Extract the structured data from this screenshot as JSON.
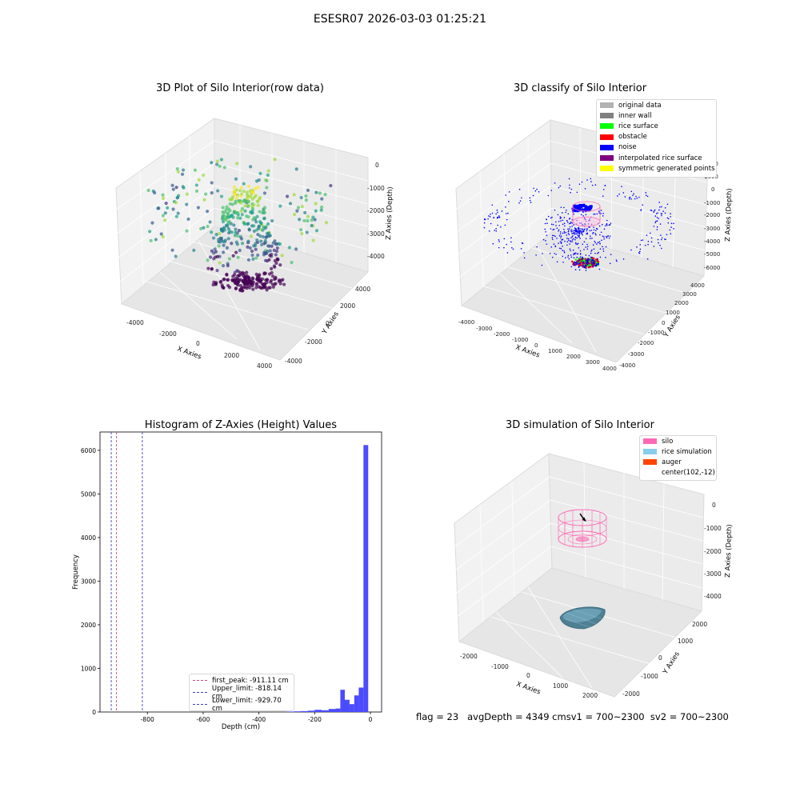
{
  "figure": {
    "suptitle": "ESESR07 2026-03-03 01:25:21",
    "footer": "flag = 23   avgDepth = 4349 cmsv1 = 700~2300  sv2 = 700~2300"
  },
  "chart_data": [
    {
      "type": "scatter",
      "title": "3D Plot of Silo Interior(row data)",
      "xlabel": "X Axies",
      "ylabel": "Y Axies",
      "zlabel": "Z Axies (Depth)",
      "x_ticks": [
        "-4000",
        "-2000",
        "0",
        "2000",
        "4000"
      ],
      "y_ticks": [
        "-4000",
        "-2000",
        "0",
        "2000",
        "4000"
      ],
      "z_ticks": [
        "0",
        "-1000",
        "-2000",
        "-3000",
        "-4000"
      ],
      "xlim": [
        -4500,
        4500
      ],
      "ylim": [
        -4500,
        4500
      ],
      "zlim": [
        -4800,
        200
      ],
      "colormap": "viridis"
    },
    {
      "type": "scatter",
      "title": "3D classify of Silo Interior",
      "xlabel": "X Axies",
      "ylabel": "Y Axies",
      "zlabel": "Z Axies (Depth)",
      "x_ticks": [
        "-4000",
        "-3000",
        "-2000",
        "-1000",
        "0",
        "1000",
        "2000",
        "3000",
        "4000"
      ],
      "y_ticks": [
        "-4000",
        "-3000",
        "-2000",
        "-1000",
        "0",
        "1000",
        "2000",
        "3000",
        "4000"
      ],
      "z_ticks": [
        "2000",
        "1000",
        "0",
        "-1000",
        "-2000",
        "-3000",
        "-4000",
        "-5000",
        "-6000"
      ],
      "legend": [
        {
          "label": "original data",
          "color": "#b2b2b2"
        },
        {
          "label": "inner wall",
          "color": "#808080"
        },
        {
          "label": "rice surface",
          "color": "#00ff00"
        },
        {
          "label": "obstacle",
          "color": "#ff0000"
        },
        {
          "label": "noise",
          "color": "#0000ff"
        },
        {
          "label": "interpolated rice surface",
          "color": "#800080"
        },
        {
          "label": "symmetric generated points",
          "color": "#ffff00"
        }
      ]
    },
    {
      "type": "bar",
      "title": "Histogram of Z-Axies (Height) Values",
      "xlabel": "Depth (cm)",
      "ylabel": "Frequency",
      "xlim": [
        -970,
        40
      ],
      "ylim": [
        0,
        6420
      ],
      "x_ticks": [
        -800,
        -600,
        -400,
        -200,
        0
      ],
      "y_ticks": [
        0,
        1000,
        2000,
        3000,
        4000,
        5000,
        6000
      ],
      "bar_color": "#4b4bff",
      "bins": [
        {
          "x0": -300,
          "x1": -275,
          "value": 10
        },
        {
          "x0": -275,
          "x1": -250,
          "value": 15
        },
        {
          "x0": -250,
          "x1": -225,
          "value": 20
        },
        {
          "x0": -225,
          "x1": -200,
          "value": 30
        },
        {
          "x0": -200,
          "x1": -175,
          "value": 50
        },
        {
          "x0": -175,
          "x1": -150,
          "value": 40
        },
        {
          "x0": -150,
          "x1": -125,
          "value": 70
        },
        {
          "x0": -125,
          "x1": -108,
          "value": 80
        },
        {
          "x0": -108,
          "x1": -92,
          "value": 510
        },
        {
          "x0": -92,
          "x1": -75,
          "value": 280
        },
        {
          "x0": -75,
          "x1": -58,
          "value": 180
        },
        {
          "x0": -58,
          "x1": -42,
          "value": 380
        },
        {
          "x0": -42,
          "x1": -25,
          "value": 560
        },
        {
          "x0": -25,
          "x1": -8,
          "value": 6120
        }
      ],
      "vlines": [
        {
          "label": "first_peak: -911.11 cm",
          "value": -911.11,
          "color": "#c0508a"
        },
        {
          "label": "Upper_limit: -818.14 cm",
          "value": -818.14,
          "color": "#4040c0"
        },
        {
          "label": "Lower_limit: -929.70 cm",
          "value": -929.7,
          "color": "#4040c0"
        }
      ]
    },
    {
      "type": "scatter",
      "title": "3D simulation of Silo Interior",
      "xlabel": "X Axies",
      "ylabel": "Y Axies",
      "zlabel": "Z Axies (Depth)",
      "x_ticks": [
        "-2000",
        "-1000",
        "0",
        "1000",
        "2000"
      ],
      "y_ticks": [
        "-2000",
        "-1000",
        "0",
        "1000",
        "2000"
      ],
      "z_ticks": [
        "0",
        "-1000",
        "-2000",
        "-3000",
        "-4000"
      ],
      "legend": [
        {
          "label": "silo",
          "color": "#ff69b4"
        },
        {
          "label": "rice simulation",
          "color": "#87ceeb"
        },
        {
          "label": "auger",
          "color": "#ff4500"
        },
        {
          "label": "center(102,-12)",
          "color": ""
        }
      ]
    }
  ]
}
